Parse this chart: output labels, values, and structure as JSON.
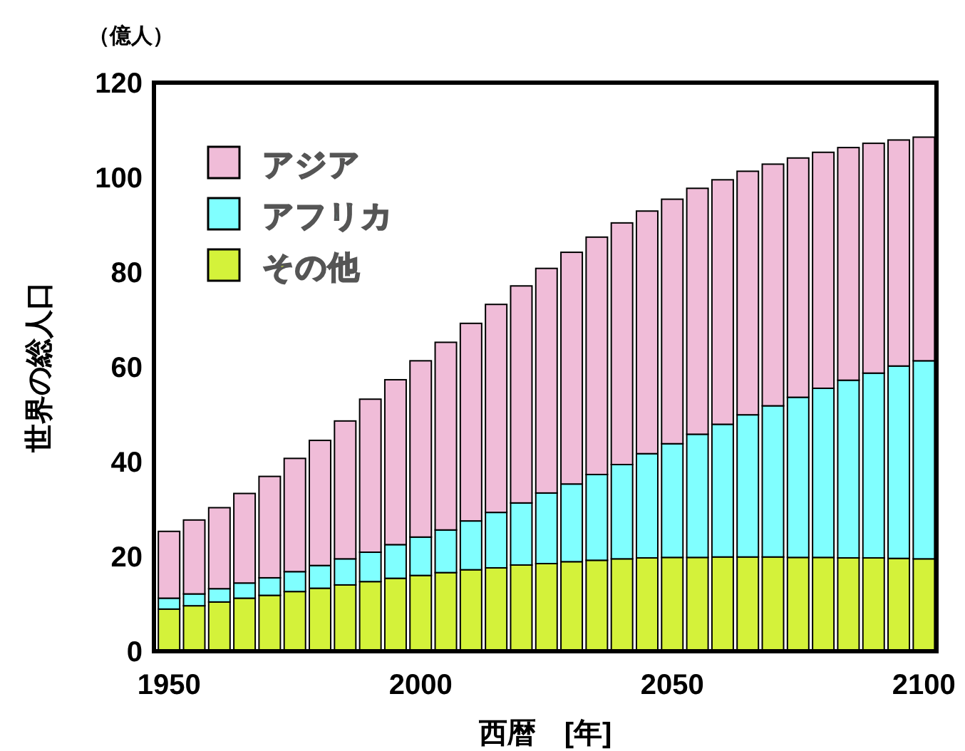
{
  "chart_data": {
    "type": "bar",
    "stacked": true,
    "ylabel": "世界の総人口",
    "xlabel": "西暦　[年]",
    "annotations": [
      "（億人）"
    ],
    "x": [
      1950,
      1955,
      1960,
      1965,
      1970,
      1975,
      1980,
      1985,
      1990,
      1995,
      2000,
      2005,
      2010,
      2015,
      2020,
      2025,
      2030,
      2035,
      2040,
      2045,
      2050,
      2055,
      2060,
      2065,
      2070,
      2075,
      2080,
      2085,
      2090,
      2095,
      2100
    ],
    "xlim": [
      1947,
      2102.5
    ],
    "xticks": [
      1950,
      2000,
      2050,
      2100
    ],
    "ylim": [
      0,
      120
    ],
    "yticks": [
      0,
      20,
      40,
      60,
      80,
      100,
      120
    ],
    "grid": false,
    "legend": "top left",
    "series": [
      {
        "name": "その他",
        "color": "#d4f23a",
        "values": [
          8.9,
          9.6,
          10.4,
          11.2,
          11.8,
          12.6,
          13.3,
          14.0,
          14.7,
          15.4,
          16.0,
          16.6,
          17.2,
          17.6,
          18.2,
          18.5,
          18.9,
          19.2,
          19.5,
          19.7,
          19.8,
          19.8,
          19.9,
          19.9,
          19.9,
          19.8,
          19.8,
          19.7,
          19.7,
          19.6,
          19.5
        ]
      },
      {
        "name": "アフリカ",
        "color": "#80ffff",
        "values": [
          2.3,
          2.5,
          2.8,
          3.2,
          3.7,
          4.2,
          4.8,
          5.5,
          6.2,
          7.1,
          8.1,
          9.0,
          10.3,
          11.7,
          13.1,
          14.9,
          16.4,
          18.1,
          19.9,
          22.0,
          24.0,
          26.0,
          28.0,
          30.0,
          31.9,
          33.8,
          35.7,
          37.5,
          39.0,
          40.6,
          41.8
        ]
      },
      {
        "name": "アジア",
        "color": "#f0bcd8",
        "values": [
          14.1,
          15.6,
          17.1,
          18.9,
          21.4,
          23.9,
          26.4,
          29.1,
          32.3,
          34.8,
          37.2,
          39.6,
          41.7,
          43.9,
          45.8,
          47.4,
          48.9,
          50.1,
          51.0,
          51.2,
          51.6,
          51.9,
          51.6,
          51.4,
          51.0,
          50.5,
          49.8,
          49.1,
          48.5,
          47.7,
          47.2
        ]
      }
    ]
  }
}
